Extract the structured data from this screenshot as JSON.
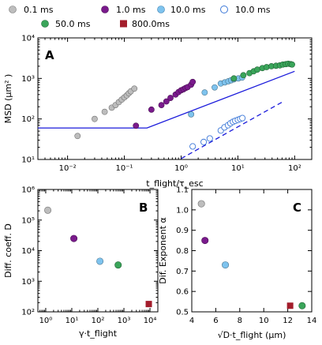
{
  "legend": [
    {
      "label": "0.1 ms",
      "series": "0.1 ms"
    },
    {
      "label": "1.0 ms",
      "series": "1.0 ms"
    },
    {
      "label": "10.0 ms",
      "series": "10.0 ms (filled)"
    },
    {
      "label": "10.0 ms",
      "series": "10.0 ms (open)"
    },
    {
      "label": "50.0 ms",
      "series": "50.0 ms"
    },
    {
      "label": "800.0ms",
      "series": "800.0ms"
    }
  ],
  "colors": {
    "gray": "#bdbdbd",
    "purple": "#7a1a8c",
    "lightblue": "#7ec3ee",
    "green": "#3aa55a",
    "red": "#a31d2b",
    "line": "#1a1adb",
    "open": "#3c78d8"
  },
  "chart_data": [
    {
      "type": "scatter",
      "panel_label": "A",
      "ylabel": "MSD (μm² )",
      "xlabel": "t_flight/τ_esc",
      "xscale": "log",
      "yscale": "log",
      "xlim": [
        0.003,
        200
      ],
      "ylim": [
        10,
        10000
      ],
      "xticks": [
        {
          "v": 0.01,
          "label": "10⁻²"
        },
        {
          "v": 0.1,
          "label": "10⁻¹"
        },
        {
          "v": 1,
          "label": "10⁰"
        },
        {
          "v": 10,
          "label": "10¹"
        },
        {
          "v": 100,
          "label": "10²"
        }
      ],
      "yticks": [
        {
          "v": 10,
          "label": "10¹"
        },
        {
          "v": 100,
          "label": "10²"
        },
        {
          "v": 1000,
          "label": "10³"
        },
        {
          "v": 10000,
          "label": "10⁴"
        }
      ],
      "series": [
        {
          "name": "0.1 ms",
          "color": "#bdbdbd",
          "fill": true,
          "x": [
            0.015,
            0.03,
            0.045,
            0.06,
            0.07,
            0.08,
            0.09,
            0.1,
            0.11,
            0.12,
            0.13,
            0.15
          ],
          "y": [
            38,
            100,
            150,
            190,
            220,
            260,
            300,
            340,
            380,
            430,
            480,
            560
          ]
        },
        {
          "name": "1.0 ms",
          "color": "#7a1a8c",
          "fill": true,
          "x": [
            0.16,
            0.3,
            0.45,
            0.55,
            0.65,
            0.8,
            0.9,
            1.0,
            1.1,
            1.2,
            1.3,
            1.5,
            1.6
          ],
          "y": [
            68,
            170,
            220,
            270,
            330,
            400,
            460,
            510,
            540,
            580,
            610,
            700,
            820
          ]
        },
        {
          "name": "10.0 ms (filled)",
          "color": "#7ec3ee",
          "fill": true,
          "x": [
            1.5,
            2.6,
            3.9,
            5.0,
            5.9,
            6.8,
            7.6,
            8.5,
            10.2,
            11.9
          ],
          "y": [
            130,
            450,
            600,
            750,
            800,
            850,
            900,
            950,
            1000,
            1050
          ]
        },
        {
          "name": "50.0 ms",
          "color": "#3aa55a",
          "fill": true,
          "x": [
            8.5,
            12.5,
            16,
            19,
            22,
            27,
            32,
            39,
            47,
            55,
            62,
            70,
            77,
            85,
            90
          ],
          "y": [
            1000,
            1200,
            1350,
            1500,
            1650,
            1800,
            1900,
            2000,
            2050,
            2100,
            2200,
            2250,
            2300,
            2250,
            2200
          ]
        },
        {
          "name": "10.0 ms (open)",
          "color": "#3c78d8",
          "fill": false,
          "x": [
            1.6,
            2.5,
            3.2,
            5.0,
            5.8,
            6.7,
            7.4,
            8.2,
            9.0,
            10.0,
            11.0,
            12.0
          ],
          "y": [
            21,
            27,
            33,
            52,
            62,
            70,
            78,
            85,
            90,
            95,
            100,
            105
          ]
        }
      ],
      "lines": [
        {
          "style": "solid",
          "x": [
            0.003,
            0.25,
            100
          ],
          "y": [
            60,
            60,
            1500
          ]
        },
        {
          "style": "dashed",
          "x": [
            1.0,
            60
          ],
          "y": [
            10.5,
            260
          ]
        }
      ]
    },
    {
      "type": "scatter",
      "panel_label": "B",
      "ylabel": "Diff. coeff. D",
      "xlabel": "γ·t_flight",
      "xscale": "log",
      "yscale": "log",
      "xlim": [
        0.5,
        20000
      ],
      "ylim": [
        100,
        1000000
      ],
      "xticks": [
        {
          "v": 1,
          "label": "10⁰"
        },
        {
          "v": 10,
          "label": "10¹"
        },
        {
          "v": 100,
          "label": "10²"
        },
        {
          "v": 1000,
          "label": "10³"
        },
        {
          "v": 10000,
          "label": "10⁴"
        }
      ],
      "yticks": [
        {
          "v": 100,
          "label": "10²"
        },
        {
          "v": 1000,
          "label": "10³"
        },
        {
          "v": 10000,
          "label": "10⁴"
        },
        {
          "v": 100000,
          "label": "10⁵"
        },
        {
          "v": 1000000,
          "label": "10⁶"
        }
      ],
      "points": [
        {
          "x": 1.2,
          "y": 210000,
          "color": "#bdbdbd",
          "shape": "circle"
        },
        {
          "x": 12,
          "y": 25000,
          "color": "#7a1a8c",
          "shape": "circle"
        },
        {
          "x": 120,
          "y": 4500,
          "color": "#7ec3ee",
          "shape": "circle"
        },
        {
          "x": 600,
          "y": 3400,
          "color": "#3aa55a",
          "shape": "circle"
        },
        {
          "x": 9000,
          "y": 180,
          "color": "#a31d2b",
          "shape": "square"
        }
      ]
    },
    {
      "type": "scatter",
      "panel_label": "C",
      "ylabel": "Dif. Exponent α",
      "xlabel": "√D·t_flight (μm)",
      "xscale": "linear",
      "yscale": "linear",
      "xlim": [
        4,
        14
      ],
      "ylim": [
        0.5,
        1.1
      ],
      "xticks": [
        {
          "v": 4,
          "label": "4"
        },
        {
          "v": 6,
          "label": "6"
        },
        {
          "v": 8,
          "label": "8"
        },
        {
          "v": 10,
          "label": "10"
        },
        {
          "v": 12,
          "label": "12"
        },
        {
          "v": 14,
          "label": "14"
        }
      ],
      "yticks": [
        {
          "v": 0.5,
          "label": "0.5"
        },
        {
          "v": 0.6,
          "label": "0.6"
        },
        {
          "v": 0.7,
          "label": "0.7"
        },
        {
          "v": 0.8,
          "label": "0.8"
        },
        {
          "v": 0.9,
          "label": "0.9"
        },
        {
          "v": 1.0,
          "label": "1.0"
        },
        {
          "v": 1.1,
          "label": "1.1"
        }
      ],
      "points": [
        {
          "x": 4.8,
          "y": 1.03,
          "color": "#bdbdbd",
          "shape": "circle"
        },
        {
          "x": 5.1,
          "y": 0.85,
          "color": "#7a1a8c",
          "shape": "circle"
        },
        {
          "x": 6.8,
          "y": 0.73,
          "color": "#7ec3ee",
          "shape": "circle"
        },
        {
          "x": 13.2,
          "y": 0.53,
          "color": "#3aa55a",
          "shape": "circle"
        },
        {
          "x": 12.2,
          "y": 0.53,
          "color": "#a31d2b",
          "shape": "square"
        }
      ]
    }
  ]
}
